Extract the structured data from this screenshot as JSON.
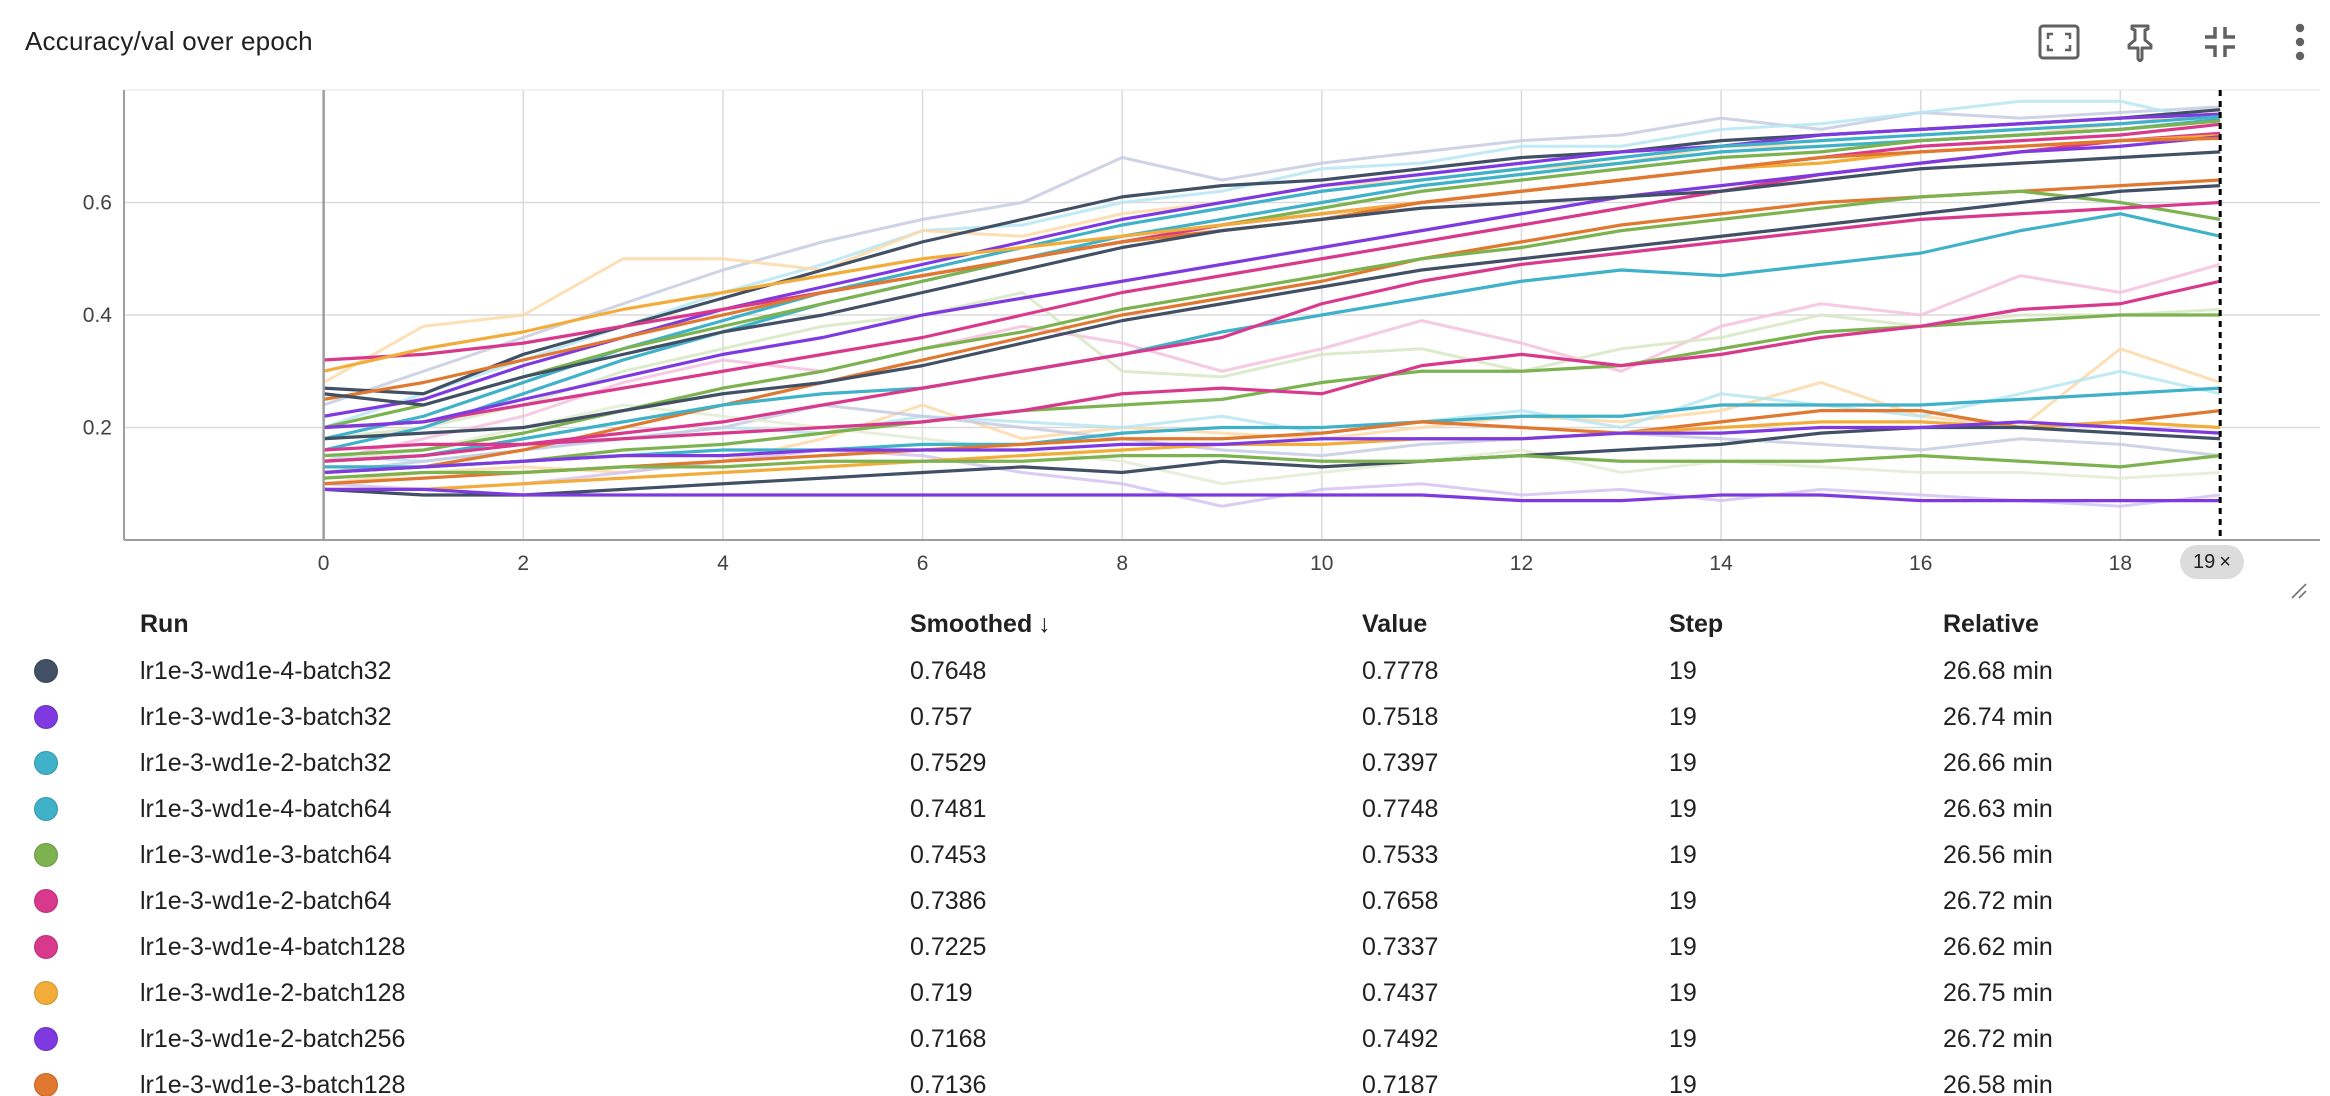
{
  "card": {
    "title": "Accuracy/val over epoch",
    "icons": [
      "fit-to-data-icon",
      "pin-icon",
      "collapse-icon",
      "more-vert-icon"
    ]
  },
  "step_chip": {
    "label": "19",
    "close_glyph": "×"
  },
  "table": {
    "headers": {
      "run": "Run",
      "smoothed": "Smoothed",
      "value": "Value",
      "step": "Step",
      "relative": "Relative"
    },
    "sort_glyph": "↓",
    "rows": [
      {
        "color": "#425066",
        "run": "lr1e-3-wd1e-4-batch32",
        "smoothed": "0.7648",
        "value": "0.7778",
        "step": "19",
        "relative": "26.68 min"
      },
      {
        "color": "#7e3ae0",
        "run": "lr1e-3-wd1e-3-batch32",
        "smoothed": "0.757",
        "value": "0.7518",
        "step": "19",
        "relative": "26.74 min"
      },
      {
        "color": "#3fb1c9",
        "run": "lr1e-3-wd1e-2-batch32",
        "smoothed": "0.7529",
        "value": "0.7397",
        "step": "19",
        "relative": "26.66 min"
      },
      {
        "color": "#3fb1c9",
        "run": "lr1e-3-wd1e-4-batch64",
        "smoothed": "0.7481",
        "value": "0.7748",
        "step": "19",
        "relative": "26.63 min"
      },
      {
        "color": "#7cb24f",
        "run": "lr1e-3-wd1e-3-batch64",
        "smoothed": "0.7453",
        "value": "0.7533",
        "step": "19",
        "relative": "26.56 min"
      },
      {
        "color": "#d9398d",
        "run": "lr1e-3-wd1e-2-batch64",
        "smoothed": "0.7386",
        "value": "0.7658",
        "step": "19",
        "relative": "26.72 min"
      },
      {
        "color": "#d9398d",
        "run": "lr1e-3-wd1e-4-batch128",
        "smoothed": "0.7225",
        "value": "0.7337",
        "step": "19",
        "relative": "26.62 min"
      },
      {
        "color": "#f2ac39",
        "run": "lr1e-3-wd1e-2-batch128",
        "smoothed": "0.719",
        "value": "0.7437",
        "step": "19",
        "relative": "26.75 min"
      },
      {
        "color": "#7e3ae0",
        "run": "lr1e-3-wd1e-2-batch256",
        "smoothed": "0.7168",
        "value": "0.7492",
        "step": "19",
        "relative": "26.72 min"
      },
      {
        "color": "#e0782f",
        "run": "lr1e-3-wd1e-3-batch128",
        "smoothed": "0.7136",
        "value": "0.7187",
        "step": "19",
        "relative": "26.58 min"
      }
    ]
  },
  "chart_data": {
    "type": "line",
    "title": "Accuracy/val over epoch",
    "xlabel": "",
    "ylabel": "",
    "xlim": [
      -2,
      20
    ],
    "ylim": [
      0,
      0.8
    ],
    "xticks": [
      0,
      2,
      4,
      6,
      8,
      10,
      12,
      14,
      16,
      18
    ],
    "yticks": [
      0.2,
      0.4,
      0.6
    ],
    "grid": true,
    "cursor_step": 19,
    "series": [
      {
        "color": "#425066",
        "values": [
          0.27,
          0.26,
          0.33,
          0.38,
          0.43,
          0.48,
          0.53,
          0.57,
          0.61,
          0.63,
          0.64,
          0.66,
          0.68,
          0.69,
          0.71,
          0.72,
          0.73,
          0.74,
          0.75,
          0.765
        ]
      },
      {
        "color": "#7e3ae0",
        "values": [
          0.22,
          0.25,
          0.31,
          0.36,
          0.41,
          0.45,
          0.49,
          0.53,
          0.57,
          0.6,
          0.63,
          0.65,
          0.67,
          0.69,
          0.7,
          0.72,
          0.73,
          0.74,
          0.75,
          0.757
        ]
      },
      {
        "color": "#3fb1c9",
        "values": [
          0.18,
          0.22,
          0.28,
          0.34,
          0.39,
          0.44,
          0.48,
          0.52,
          0.56,
          0.59,
          0.62,
          0.64,
          0.66,
          0.68,
          0.7,
          0.71,
          0.72,
          0.73,
          0.74,
          0.753
        ]
      },
      {
        "color": "#3fb1c9",
        "values": [
          0.16,
          0.2,
          0.26,
          0.32,
          0.37,
          0.42,
          0.46,
          0.5,
          0.54,
          0.57,
          0.6,
          0.63,
          0.65,
          0.67,
          0.69,
          0.7,
          0.71,
          0.72,
          0.73,
          0.748
        ]
      },
      {
        "color": "#7cb24f",
        "values": [
          0.2,
          0.24,
          0.29,
          0.34,
          0.38,
          0.42,
          0.46,
          0.5,
          0.53,
          0.56,
          0.59,
          0.62,
          0.64,
          0.66,
          0.68,
          0.69,
          0.71,
          0.72,
          0.73,
          0.745
        ]
      },
      {
        "color": "#d9398d",
        "values": [
          0.32,
          0.33,
          0.35,
          0.38,
          0.41,
          0.44,
          0.47,
          0.5,
          0.53,
          0.56,
          0.58,
          0.6,
          0.62,
          0.64,
          0.66,
          0.68,
          0.7,
          0.71,
          0.72,
          0.739
        ]
      },
      {
        "color": "#d9398d",
        "values": [
          0.2,
          0.21,
          0.24,
          0.27,
          0.3,
          0.33,
          0.36,
          0.4,
          0.44,
          0.47,
          0.5,
          0.53,
          0.56,
          0.59,
          0.62,
          0.65,
          0.67,
          0.69,
          0.71,
          0.723
        ]
      },
      {
        "color": "#f2ac39",
        "values": [
          0.3,
          0.34,
          0.37,
          0.41,
          0.44,
          0.47,
          0.5,
          0.52,
          0.54,
          0.56,
          0.58,
          0.6,
          0.62,
          0.64,
          0.66,
          0.67,
          0.69,
          0.7,
          0.71,
          0.719
        ]
      },
      {
        "color": "#7e3ae0",
        "values": [
          0.2,
          0.21,
          0.25,
          0.29,
          0.33,
          0.36,
          0.4,
          0.43,
          0.46,
          0.49,
          0.52,
          0.55,
          0.58,
          0.61,
          0.63,
          0.65,
          0.67,
          0.69,
          0.7,
          0.717
        ]
      },
      {
        "color": "#e0782f",
        "values": [
          0.25,
          0.28,
          0.32,
          0.36,
          0.4,
          0.44,
          0.47,
          0.5,
          0.53,
          0.55,
          0.57,
          0.6,
          0.62,
          0.64,
          0.66,
          0.68,
          0.69,
          0.7,
          0.71,
          0.714
        ]
      },
      {
        "color": "#e0782f",
        "values": [
          0.12,
          0.13,
          0.16,
          0.2,
          0.24,
          0.28,
          0.32,
          0.36,
          0.4,
          0.43,
          0.46,
          0.5,
          0.53,
          0.56,
          0.58,
          0.6,
          0.61,
          0.62,
          0.63,
          0.64
        ]
      },
      {
        "color": "#425066",
        "values": [
          0.26,
          0.24,
          0.29,
          0.33,
          0.37,
          0.4,
          0.44,
          0.48,
          0.52,
          0.55,
          0.57,
          0.59,
          0.6,
          0.61,
          0.62,
          0.64,
          0.66,
          0.67,
          0.68,
          0.69
        ]
      },
      {
        "color": "#7cb24f",
        "values": [
          0.15,
          0.16,
          0.19,
          0.23,
          0.27,
          0.3,
          0.34,
          0.37,
          0.41,
          0.44,
          0.47,
          0.5,
          0.52,
          0.55,
          0.57,
          0.59,
          0.61,
          0.62,
          0.6,
          0.57
        ]
      },
      {
        "color": "#3fb1c9",
        "values": [
          0.14,
          0.15,
          0.18,
          0.21,
          0.24,
          0.26,
          0.27,
          0.3,
          0.33,
          0.37,
          0.4,
          0.43,
          0.46,
          0.48,
          0.47,
          0.49,
          0.51,
          0.55,
          0.58,
          0.54
        ]
      },
      {
        "color": "#425066",
        "values": [
          0.18,
          0.19,
          0.2,
          0.23,
          0.26,
          0.28,
          0.31,
          0.35,
          0.39,
          0.42,
          0.45,
          0.48,
          0.5,
          0.52,
          0.54,
          0.56,
          0.58,
          0.6,
          0.62,
          0.63
        ]
      },
      {
        "color": "#d9398d",
        "values": [
          0.14,
          0.15,
          0.17,
          0.19,
          0.21,
          0.24,
          0.27,
          0.3,
          0.33,
          0.36,
          0.42,
          0.46,
          0.49,
          0.51,
          0.53,
          0.55,
          0.57,
          0.58,
          0.59,
          0.6
        ]
      },
      {
        "color": "#7cb24f",
        "values": [
          0.12,
          0.13,
          0.14,
          0.16,
          0.17,
          0.19,
          0.21,
          0.23,
          0.24,
          0.25,
          0.28,
          0.3,
          0.3,
          0.31,
          0.34,
          0.37,
          0.38,
          0.39,
          0.4,
          0.4
        ]
      },
      {
        "color": "#d9398d",
        "values": [
          0.16,
          0.17,
          0.17,
          0.18,
          0.19,
          0.2,
          0.21,
          0.23,
          0.26,
          0.27,
          0.26,
          0.31,
          0.33,
          0.31,
          0.33,
          0.36,
          0.38,
          0.41,
          0.42,
          0.46
        ]
      },
      {
        "color": "#3fb1c9",
        "values": [
          0.13,
          0.13,
          0.14,
          0.15,
          0.16,
          0.16,
          0.17,
          0.17,
          0.19,
          0.2,
          0.2,
          0.21,
          0.22,
          0.22,
          0.24,
          0.24,
          0.24,
          0.25,
          0.26,
          0.27
        ]
      },
      {
        "color": "#e0782f",
        "values": [
          0.1,
          0.11,
          0.12,
          0.13,
          0.14,
          0.15,
          0.16,
          0.17,
          0.18,
          0.18,
          0.19,
          0.21,
          0.2,
          0.19,
          0.21,
          0.23,
          0.23,
          0.2,
          0.21,
          0.23
        ]
      },
      {
        "color": "#f2ac39",
        "values": [
          0.09,
          0.09,
          0.1,
          0.11,
          0.12,
          0.13,
          0.14,
          0.15,
          0.16,
          0.17,
          0.17,
          0.18,
          0.18,
          0.19,
          0.2,
          0.21,
          0.21,
          0.2,
          0.21,
          0.2
        ]
      },
      {
        "color": "#425066",
        "values": [
          0.09,
          0.08,
          0.08,
          0.09,
          0.1,
          0.11,
          0.12,
          0.13,
          0.12,
          0.14,
          0.13,
          0.14,
          0.15,
          0.16,
          0.17,
          0.19,
          0.2,
          0.2,
          0.19,
          0.18
        ]
      },
      {
        "color": "#7cb24f",
        "values": [
          0.11,
          0.12,
          0.12,
          0.13,
          0.13,
          0.14,
          0.14,
          0.14,
          0.15,
          0.15,
          0.14,
          0.14,
          0.15,
          0.14,
          0.14,
          0.14,
          0.15,
          0.14,
          0.13,
          0.15
        ]
      },
      {
        "color": "#7e3ae0",
        "values": [
          0.09,
          0.09,
          0.08,
          0.08,
          0.08,
          0.08,
          0.08,
          0.08,
          0.08,
          0.08,
          0.08,
          0.08,
          0.07,
          0.07,
          0.08,
          0.08,
          0.07,
          0.07,
          0.07,
          0.07
        ]
      },
      {
        "color": "#7e3ae0",
        "values": [
          0.12,
          0.13,
          0.14,
          0.15,
          0.15,
          0.16,
          0.16,
          0.16,
          0.17,
          0.17,
          0.18,
          0.18,
          0.18,
          0.19,
          0.19,
          0.2,
          0.2,
          0.21,
          0.2,
          0.19
        ]
      }
    ],
    "faint_series": [
      {
        "color": "#c5cbe0",
        "values": [
          0.24,
          0.3,
          0.36,
          0.42,
          0.48,
          0.53,
          0.57,
          0.6,
          0.68,
          0.64,
          0.67,
          0.69,
          0.71,
          0.72,
          0.75,
          0.73,
          0.76,
          0.75,
          0.76,
          0.77
        ]
      },
      {
        "color": "#b6e6f2",
        "values": [
          0.2,
          0.26,
          0.32,
          0.38,
          0.44,
          0.49,
          0.55,
          0.56,
          0.6,
          0.62,
          0.66,
          0.67,
          0.7,
          0.7,
          0.73,
          0.74,
          0.76,
          0.78,
          0.78,
          0.74
        ]
      },
      {
        "color": "#fdd9a8",
        "values": [
          0.28,
          0.38,
          0.4,
          0.5,
          0.5,
          0.48,
          0.55,
          0.54,
          0.58,
          0.6,
          0.63,
          0.64,
          0.66,
          0.67,
          0.7,
          0.7,
          0.71,
          0.72,
          0.74,
          0.76
        ]
      },
      {
        "color": "#f5c1dd",
        "values": [
          0.14,
          0.18,
          0.22,
          0.28,
          0.32,
          0.3,
          0.34,
          0.38,
          0.35,
          0.3,
          0.34,
          0.39,
          0.35,
          0.3,
          0.38,
          0.42,
          0.4,
          0.47,
          0.44,
          0.49
        ]
      },
      {
        "color": "#d7e8c4",
        "values": [
          0.18,
          0.2,
          0.24,
          0.3,
          0.34,
          0.38,
          0.4,
          0.44,
          0.3,
          0.29,
          0.33,
          0.34,
          0.3,
          0.34,
          0.36,
          0.4,
          0.38,
          0.4,
          0.4,
          0.41
        ]
      },
      {
        "color": "#fdd9a8",
        "values": [
          0.1,
          0.12,
          0.13,
          0.12,
          0.14,
          0.18,
          0.24,
          0.18,
          0.2,
          0.19,
          0.18,
          0.2,
          0.22,
          0.21,
          0.23,
          0.28,
          0.22,
          0.2,
          0.34,
          0.28
        ]
      },
      {
        "color": "#b6e6f2",
        "values": [
          0.15,
          0.14,
          0.16,
          0.18,
          0.2,
          0.19,
          0.22,
          0.21,
          0.2,
          0.22,
          0.19,
          0.21,
          0.23,
          0.2,
          0.26,
          0.24,
          0.22,
          0.26,
          0.3,
          0.26
        ]
      },
      {
        "color": "#d5c3f2",
        "values": [
          0.1,
          0.09,
          0.1,
          0.12,
          0.14,
          0.16,
          0.15,
          0.12,
          0.1,
          0.06,
          0.09,
          0.1,
          0.08,
          0.09,
          0.07,
          0.09,
          0.08,
          0.07,
          0.06,
          0.08
        ]
      },
      {
        "color": "#c5cbe0",
        "values": [
          0.12,
          0.14,
          0.16,
          0.18,
          0.2,
          0.24,
          0.22,
          0.2,
          0.18,
          0.16,
          0.15,
          0.17,
          0.18,
          0.19,
          0.18,
          0.17,
          0.16,
          0.18,
          0.17,
          0.15
        ]
      },
      {
        "color": "#e3ecd5",
        "values": [
          0.14,
          0.16,
          0.2,
          0.24,
          0.22,
          0.2,
          0.18,
          0.16,
          0.14,
          0.1,
          0.12,
          0.14,
          0.16,
          0.12,
          0.14,
          0.13,
          0.12,
          0.12,
          0.11,
          0.12
        ]
      }
    ]
  }
}
